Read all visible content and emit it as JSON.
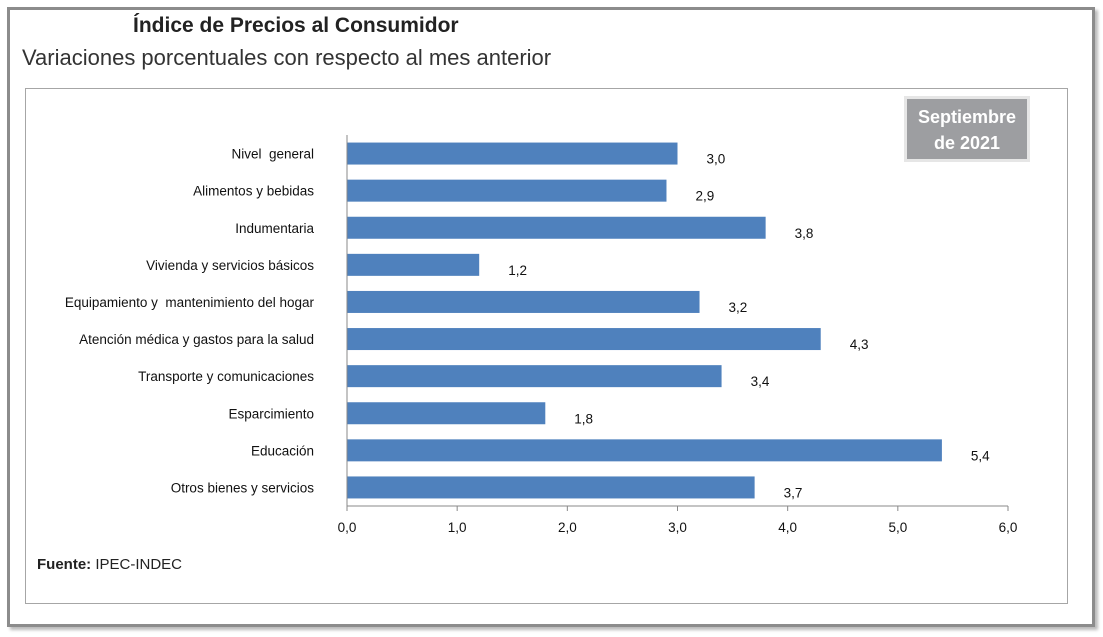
{
  "chart_data": {
    "type": "bar",
    "orientation": "horizontal",
    "title": "Índice de Precios al Consumidor",
    "subtitle": "Variaciones porcentuales con respecto al mes anterior",
    "badge": "Septiembre de 2021",
    "categories": [
      "Nivel  general",
      "Alimentos y bebidas",
      "Indumentaria",
      "Vivienda y servicios básicos",
      "Equipamiento y  mantenimiento del hogar",
      "Atención médica y gastos para la salud",
      "Transporte y comunicaciones",
      "Esparcimiento",
      "Educación",
      "Otros bienes y servicios"
    ],
    "values": [
      3.0,
      2.9,
      3.8,
      1.2,
      3.2,
      4.3,
      3.4,
      1.8,
      5.4,
      3.7
    ],
    "data_labels": [
      "3,0",
      "2,9",
      "3,8",
      "1,2",
      "3,2",
      "4,3",
      "3,4",
      "1,8",
      "5,4",
      "3,7"
    ],
    "xlim": [
      0,
      6
    ],
    "x_ticks": [
      "0,0",
      "1,0",
      "2,0",
      "3,0",
      "4,0",
      "5,0",
      "6,0"
    ],
    "grid": false,
    "bar_color": "#4f81bd",
    "source_label": "Fuente:",
    "source_value": "IPEC-INDEC"
  }
}
